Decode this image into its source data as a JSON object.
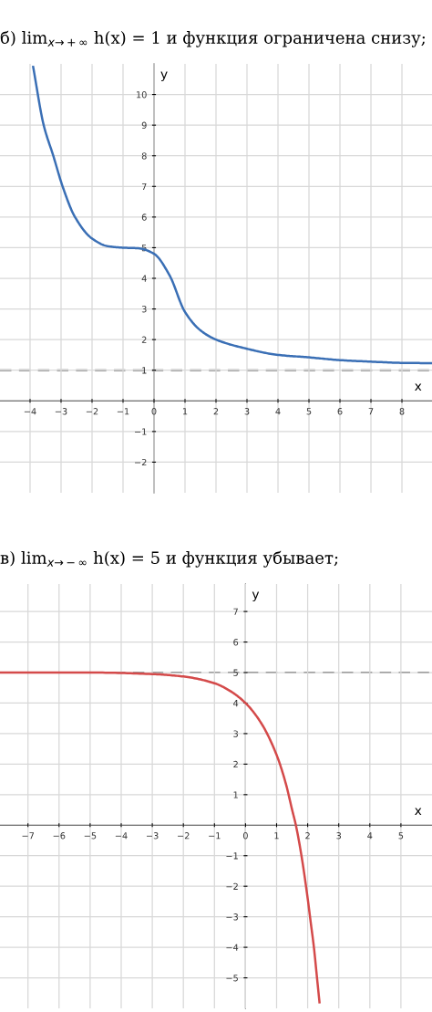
{
  "chart_data": [
    {
      "type": "line",
      "title": "б) lim$_{x→+∞}$ h(x) = 1 и функция ограничена снизу;",
      "xlabel": "x",
      "ylabel": "y",
      "xlim": [
        -4.97,
        8.97
      ],
      "ylim": [
        -3,
        11
      ],
      "xticks": [
        -4,
        -3,
        -2,
        -1,
        0,
        1,
        2,
        3,
        4,
        5,
        6,
        7,
        8
      ],
      "yticks": [
        -2,
        -1,
        1,
        2,
        3,
        4,
        5,
        6,
        7,
        8,
        9,
        10
      ],
      "grid": true,
      "marker": "none",
      "line_style": "solid",
      "series": [
        {
          "color": "#3a6fb5",
          "x": [
            -3.9,
            -3.56,
            -3.25,
            -2.95,
            -2.55,
            -2,
            -1.5,
            -1,
            -0.5,
            0,
            0.5,
            1,
            1.5,
            2,
            3,
            4,
            5,
            6,
            7,
            8,
            8.95
          ],
          "values": [
            10.9,
            9,
            8,
            7,
            6,
            5.3,
            5.05,
            5,
            4.98,
            4.8,
            4.1,
            2.9,
            2.3,
            2,
            1.7,
            1.5,
            1.42,
            1.33,
            1.28,
            1.24,
            1.23
          ]
        }
      ],
      "ref_lines": [
        {
          "axis": "y",
          "value": 1,
          "color": "#666666",
          "line_style": "dashed"
        }
      ]
    },
    {
      "type": "line",
      "title": "в) lim$_{x→−∞}$ h(x) = 5 и функция убывает;",
      "xlabel": "x",
      "ylabel": "y",
      "xlim": [
        -7.9,
        6
      ],
      "ylim": [
        -6,
        7.9
      ],
      "xticks": [
        -7,
        -6,
        -5,
        -4,
        -3,
        -2,
        -1,
        0,
        1,
        2,
        3,
        4,
        5
      ],
      "yticks": [
        -5,
        -4,
        -3,
        -2,
        -1,
        1,
        2,
        3,
        4,
        5,
        6,
        7
      ],
      "grid": true,
      "marker": "none",
      "line_style": "solid",
      "series": [
        {
          "color": "#d44a4a",
          "x": [
            -7.9,
            -5,
            -3,
            -2,
            -1,
            -0.5,
            0,
            0.5,
            1,
            1.3,
            1.5,
            1.62,
            1.8,
            2,
            2.1,
            2.2,
            2.3,
            2.38
          ],
          "values": [
            5,
            5,
            4.95,
            4.87,
            4.65,
            4.4,
            4,
            3.35,
            2.3,
            1.35,
            0.5,
            0,
            -1,
            -2.4,
            -3.2,
            -4,
            -5,
            -5.8
          ]
        }
      ],
      "ref_lines": [
        {
          "axis": "y",
          "value": 5,
          "color": "#666666",
          "line_style": "dashed"
        }
      ]
    }
  ]
}
